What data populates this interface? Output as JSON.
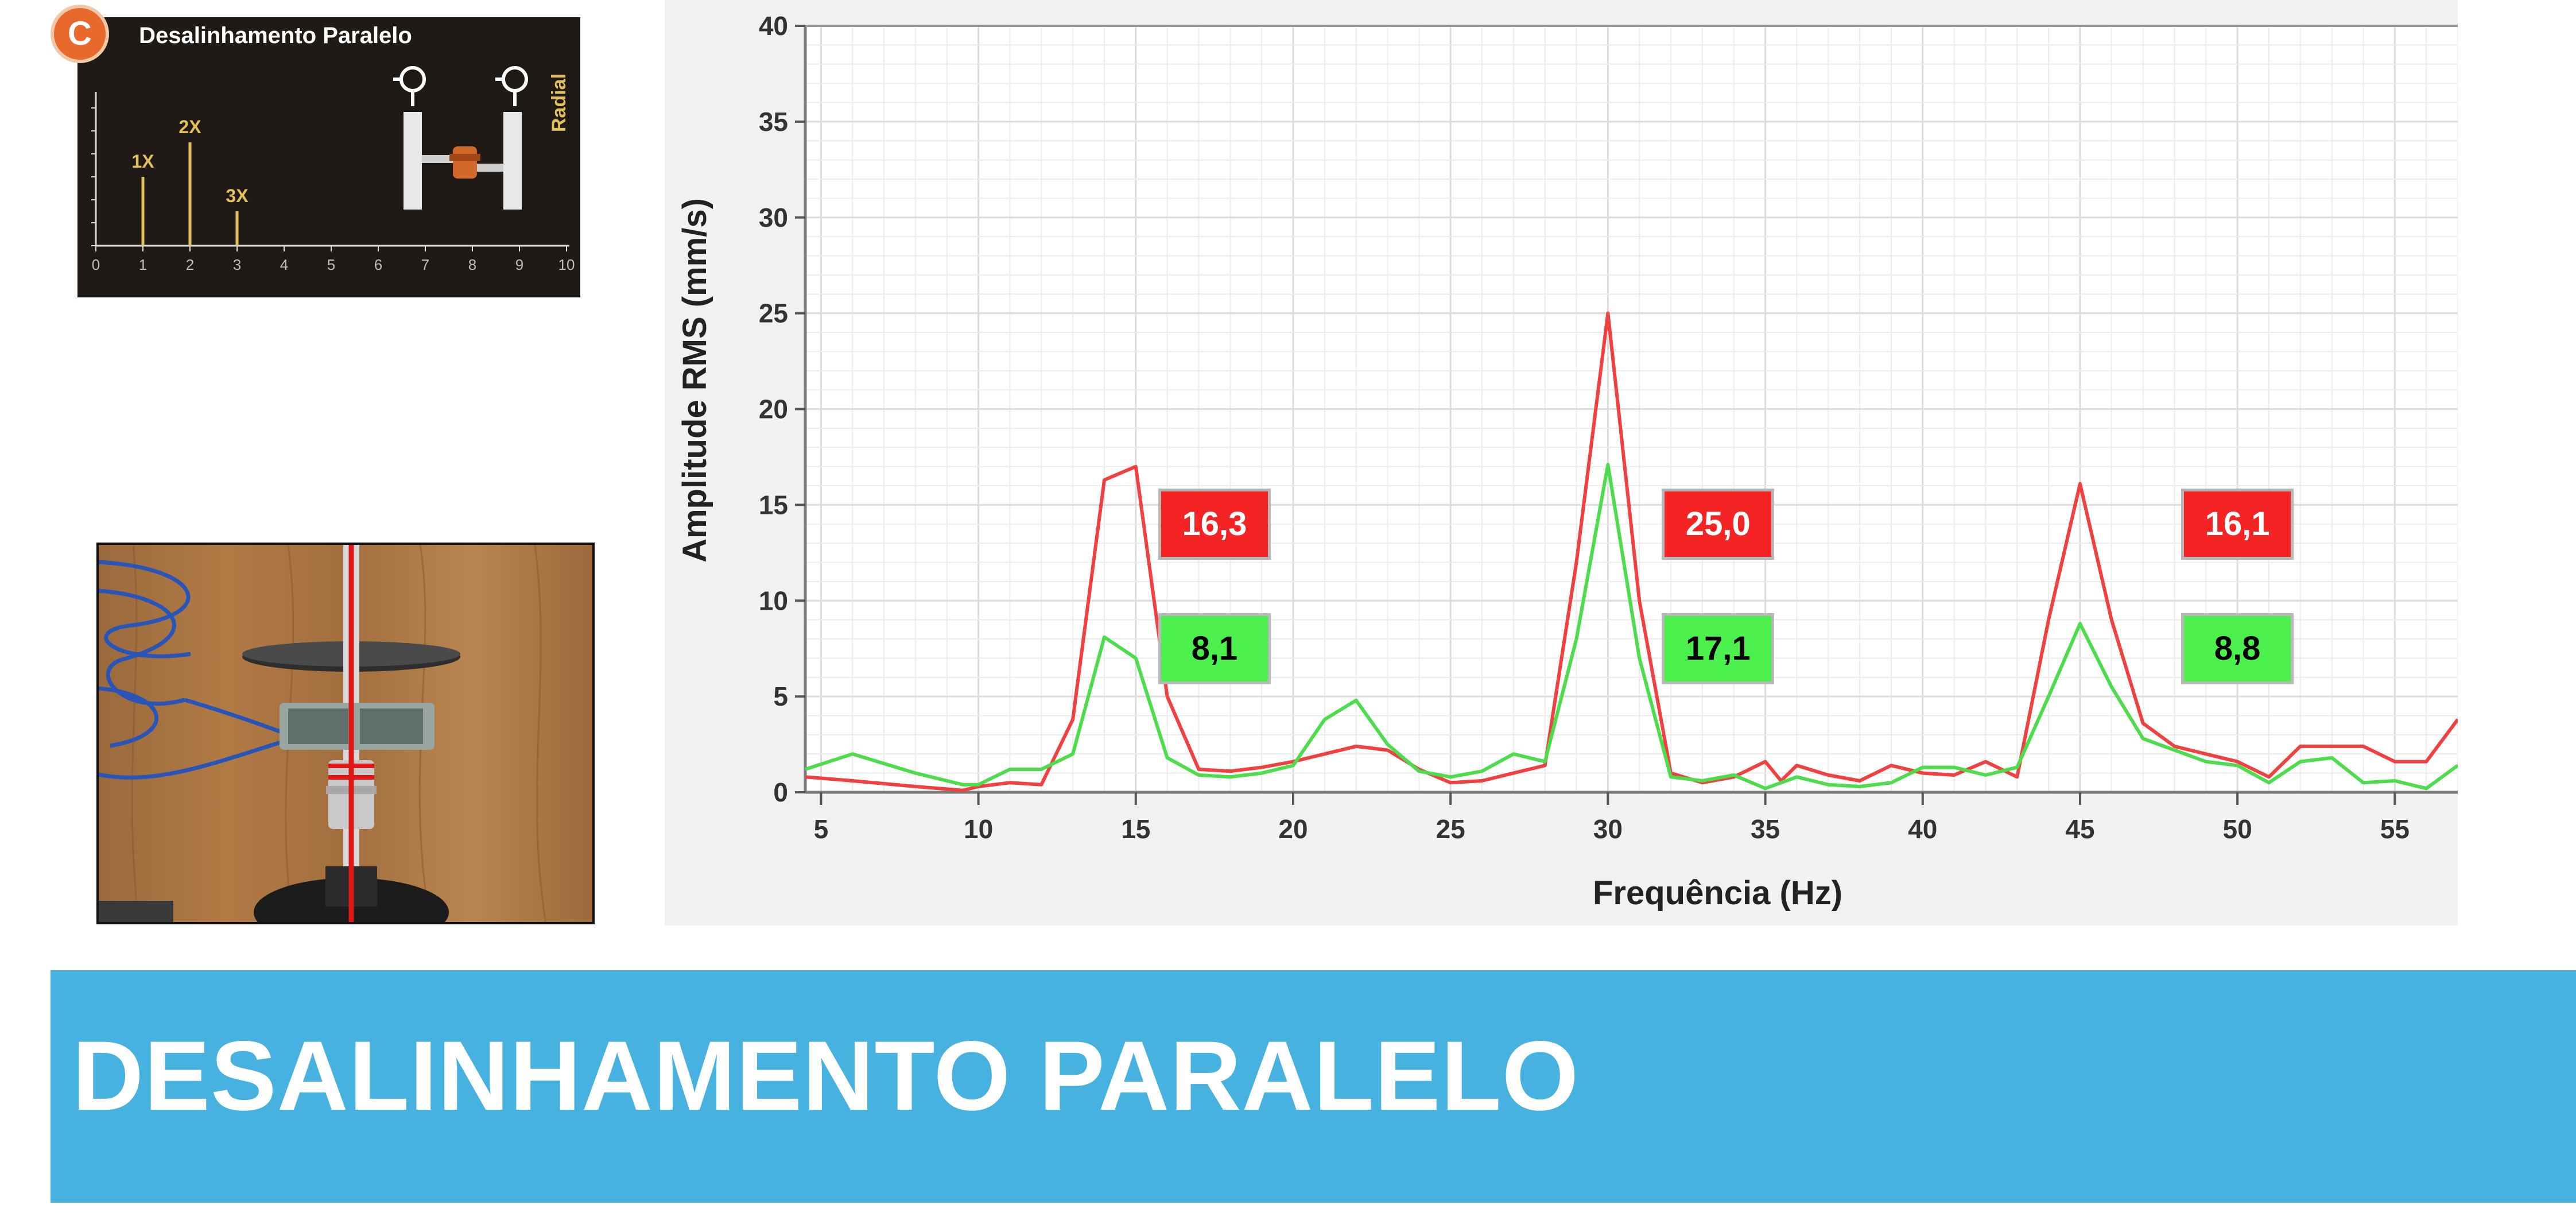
{
  "reference_card": {
    "badge": "C",
    "title": "Desalinhamento Paralelo",
    "side_label": "Radial",
    "harmonic_labels": [
      "1X",
      "2X",
      "3X"
    ],
    "harmonic_values": [
      2,
      3,
      1
    ],
    "axis_ticks": [
      "0",
      "1",
      "2",
      "3",
      "4",
      "5",
      "6",
      "7",
      "8",
      "9",
      "10"
    ]
  },
  "chart_data": {
    "type": "line",
    "xlabel": "Frequência (Hz)",
    "ylabel": "Amplitude RMS (mm/s)",
    "xlim": [
      4.5,
      57
    ],
    "ylim": [
      0,
      40
    ],
    "x_ticks": [
      5,
      10,
      15,
      20,
      25,
      30,
      35,
      40,
      45,
      50,
      55
    ],
    "y_ticks": [
      0,
      5,
      10,
      15,
      20,
      25,
      30,
      35,
      40
    ],
    "grid": true,
    "series": [
      {
        "color": "#f04040",
        "points": [
          [
            4.5,
            0.8
          ],
          [
            6,
            0.6
          ],
          [
            8,
            0.3
          ],
          [
            9.5,
            0.1
          ],
          [
            10,
            0.3
          ],
          [
            11,
            0.5
          ],
          [
            12,
            0.4
          ],
          [
            13,
            3.8
          ],
          [
            14,
            16.3
          ],
          [
            15,
            17
          ],
          [
            16,
            5
          ],
          [
            17,
            1.2
          ],
          [
            18,
            1.1
          ],
          [
            19,
            1.3
          ],
          [
            20,
            1.6
          ],
          [
            21,
            2
          ],
          [
            22,
            2.4
          ],
          [
            23,
            2.2
          ],
          [
            24,
            1.2
          ],
          [
            25,
            0.5
          ],
          [
            26,
            0.6
          ],
          [
            27,
            1
          ],
          [
            28,
            1.4
          ],
          [
            29,
            12
          ],
          [
            30,
            25
          ],
          [
            31,
            10
          ],
          [
            32,
            1
          ],
          [
            33,
            0.5
          ],
          [
            34,
            0.8
          ],
          [
            35,
            1.6
          ],
          [
            35.5,
            0.6
          ],
          [
            36,
            1.4
          ],
          [
            37,
            0.9
          ],
          [
            38,
            0.6
          ],
          [
            39,
            1.4
          ],
          [
            40,
            1
          ],
          [
            41,
            0.9
          ],
          [
            42,
            1.6
          ],
          [
            43,
            0.8
          ],
          [
            44,
            9
          ],
          [
            45,
            16.1
          ],
          [
            46,
            9
          ],
          [
            47,
            3.6
          ],
          [
            48,
            2.4
          ],
          [
            49,
            2
          ],
          [
            50,
            1.6
          ],
          [
            51,
            0.8
          ],
          [
            52,
            2.4
          ],
          [
            53,
            2.4
          ],
          [
            54,
            2.4
          ],
          [
            55,
            1.6
          ],
          [
            56,
            1.6
          ],
          [
            57,
            3.8
          ]
        ]
      },
      {
        "color": "#4cdc4c",
        "points": [
          [
            4.5,
            1.2
          ],
          [
            6,
            2
          ],
          [
            8,
            1
          ],
          [
            9.5,
            0.4
          ],
          [
            10,
            0.4
          ],
          [
            11,
            1.2
          ],
          [
            12,
            1.2
          ],
          [
            13,
            2
          ],
          [
            14,
            8.1
          ],
          [
            15,
            7
          ],
          [
            16,
            1.8
          ],
          [
            17,
            0.9
          ],
          [
            18,
            0.8
          ],
          [
            19,
            1
          ],
          [
            20,
            1.4
          ],
          [
            21,
            3.8
          ],
          [
            22,
            4.8
          ],
          [
            23,
            2.5
          ],
          [
            24,
            1.1
          ],
          [
            25,
            0.8
          ],
          [
            26,
            1.1
          ],
          [
            27,
            2
          ],
          [
            28,
            1.6
          ],
          [
            29,
            8
          ],
          [
            30,
            17.1
          ],
          [
            31,
            7
          ],
          [
            32,
            0.8
          ],
          [
            33,
            0.6
          ],
          [
            34,
            0.9
          ],
          [
            35,
            0.2
          ],
          [
            36,
            0.8
          ],
          [
            37,
            0.4
          ],
          [
            38,
            0.3
          ],
          [
            39,
            0.5
          ],
          [
            40,
            1.3
          ],
          [
            41,
            1.3
          ],
          [
            42,
            0.9
          ],
          [
            43,
            1.3
          ],
          [
            44,
            5
          ],
          [
            45,
            8.8
          ],
          [
            46,
            5.5
          ],
          [
            47,
            2.8
          ],
          [
            48,
            2.2
          ],
          [
            49,
            1.6
          ],
          [
            50,
            1.4
          ],
          [
            51,
            0.5
          ],
          [
            52,
            1.6
          ],
          [
            53,
            1.8
          ],
          [
            54,
            0.5
          ],
          [
            55,
            0.6
          ],
          [
            56,
            0.2
          ],
          [
            57,
            1.4
          ]
        ]
      }
    ],
    "annotations": [
      {
        "text": "16,3",
        "color": "red",
        "x": 17.5,
        "y": 14
      },
      {
        "text": "8,1",
        "color": "green",
        "x": 17.5,
        "y": 7.5
      },
      {
        "text": "25,0",
        "color": "red",
        "x": 33.5,
        "y": 14
      },
      {
        "text": "17,1",
        "color": "green",
        "x": 33.5,
        "y": 7.5
      },
      {
        "text": "16,1",
        "color": "red",
        "x": 50,
        "y": 14
      },
      {
        "text": "8,8",
        "color": "green",
        "x": 50,
        "y": 7.5
      }
    ]
  },
  "banner": {
    "title": "DESALINHAMENTO PARALELO",
    "color": "#47b2e0"
  }
}
